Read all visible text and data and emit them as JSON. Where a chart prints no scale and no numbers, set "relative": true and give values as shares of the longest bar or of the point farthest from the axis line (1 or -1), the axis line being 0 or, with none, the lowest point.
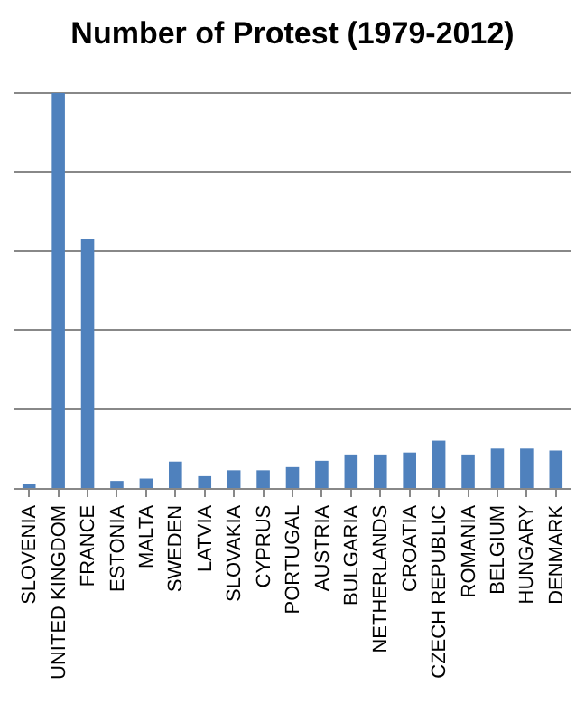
{
  "chart_data": {
    "type": "bar",
    "title": "Number of Protest (1979-2012)",
    "categories": [
      "SLOVENIA",
      "UNITED KINGDOM",
      "FRANCE",
      "ESTONIA",
      "MALTA",
      "SWEDEN",
      "LATVIA",
      "SLOVAKIA",
      "CYPRUS",
      "PORTUGAL",
      "AUSTRIA",
      "BULGARIA",
      "NETHERLANDS",
      "CROATIA",
      "CZECH REPUBLIC",
      "ROMANIA",
      "BELGIUM",
      "HUNGARY",
      "DENMARK"
    ],
    "values": [
      0.01,
      1,
      0.63,
      0.018,
      0.024,
      0.067,
      0.03,
      0.045,
      0.045,
      0.053,
      0.069,
      0.085,
      0.085,
      0.09,
      0.12,
      0.085,
      0.1,
      0.1,
      0.095
    ],
    "color": "#4f81bd",
    "relative": true,
    "grid": "y"
  }
}
